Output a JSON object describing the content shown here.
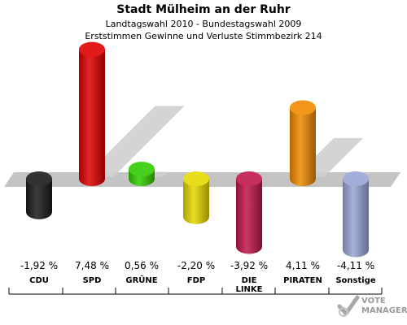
{
  "title": "Stadt Mülheim an der Ruhr",
  "subtitle1": "Landtagswahl 2010 - Bundestagswahl 2009",
  "subtitle2": "Erststimmen Gewinne und Verluste Stimmbezirk 214",
  "logo": {
    "line1": "VOTE",
    "line2": "MANAGER",
    "icon": "checkmark-ballot-icon"
  },
  "chart_data": {
    "type": "bar",
    "title": "Stadt Mülheim an der Ruhr",
    "xlabel": "",
    "ylabel": "",
    "unit": "%",
    "categories": [
      "CDU",
      "SPD",
      "GRÜNE",
      "FDP",
      "DIE LINKE",
      "PIRATEN",
      "Sonstige"
    ],
    "category_lines": [
      [
        "CDU"
      ],
      [
        "SPD"
      ],
      [
        "GRÜNE"
      ],
      [
        "FDP"
      ],
      [
        "DIE",
        "LINKE"
      ],
      [
        "PIRATEN"
      ],
      [
        "Sonstige"
      ]
    ],
    "values": [
      -1.92,
      7.48,
      0.56,
      -2.2,
      -3.92,
      4.11,
      -4.11
    ],
    "value_labels": [
      "-1,92 %",
      "7,48 %",
      "0,56 %",
      "-2,20 %",
      "-3,92 %",
      "4,11 %",
      "-4,11 %"
    ],
    "colors": [
      "#1a1a1a",
      "#e00000",
      "#33cc00",
      "#e6d800",
      "#c0174a",
      "#f08a00",
      "#99a6d6"
    ],
    "ylim": [
      -4.11,
      7.48
    ],
    "grid": false,
    "legend": "none"
  }
}
